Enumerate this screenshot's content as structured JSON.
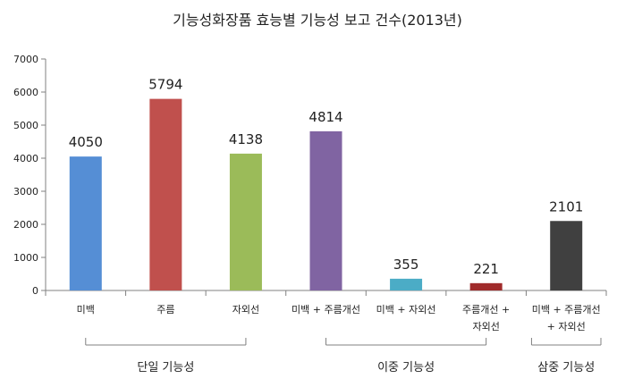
{
  "chart_data": {
    "type": "bar",
    "title": "기능성화장품 효능별 기능성 보고 건수(2013년)",
    "xlabel": "",
    "ylabel": "",
    "ylim": [
      0,
      7000
    ],
    "yticks": [
      "0",
      "1000",
      "2000",
      "3000",
      "4000",
      "5000",
      "6000",
      "7000"
    ],
    "grid": false,
    "legend": "none",
    "categories": [
      [
        "미백"
      ],
      [
        "주름"
      ],
      [
        "자외선"
      ],
      [
        "미백 + 주름개선"
      ],
      [
        "미백 + 자외선"
      ],
      [
        "주름개선 +",
        "자외선"
      ],
      [
        "미백 + 주름개선",
        "+ 자외선"
      ]
    ],
    "values": [
      4050,
      5794,
      4138,
      4814,
      355,
      221,
      2101
    ],
    "value_labels": [
      "4050",
      "5794",
      "4138",
      "4814",
      "355",
      "221",
      "2101"
    ],
    "colors": [
      "#558ed5",
      "#c0504d",
      "#9bbb59",
      "#8064a2",
      "#4bacc6",
      "#a02b2b",
      "#404040"
    ],
    "groups": [
      {
        "label": "단일 기능성",
        "from": 0,
        "to": 2
      },
      {
        "label": "이중 기능성",
        "from": 3,
        "to": 5
      },
      {
        "label": "삼중 기능성",
        "from": 6,
        "to": 6
      }
    ]
  }
}
